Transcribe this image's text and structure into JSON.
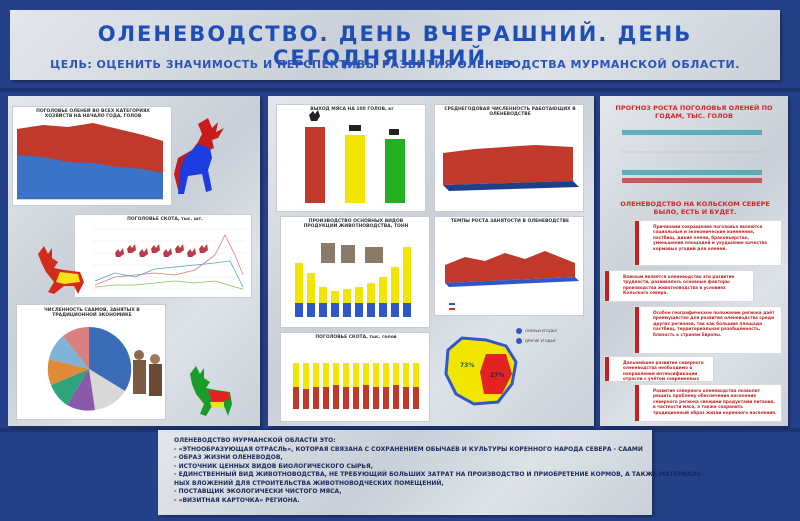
{
  "header": {
    "title": "ОЛЕНЕВОДСТВО. ДЕНЬ ВЧЕРАШНИЙ. ДЕНЬ СЕГОДНЯШНИЙ...",
    "goal": "ЦЕЛЬ: ОЦЕНИТЬ ЗНАЧИМОСТЬ И ПЕРСПЕКТИВЫ РАЗВИТИЯ ОЛЕНЕВОДСТВА МУРМАНСКОЙ ОБЛАСТИ."
  },
  "left_panel": {
    "chart1_title": "ПОГОЛОВЬЕ ОЛЕНЕЙ ВО ВСЕХ КАТЕГОРИЯХ ХОЗЯЙСТВ НА НАЧАЛО ГОДА, ГОЛОВ",
    "chart2_title": "ПОГОЛОВЬЕ СКОТА, тыс. шт.",
    "chart3_title": "ЧИСЛЕННОСТЬ СААМОВ, ЗАНЯТЫХ В ТРАДИЦИОННОЙ ЭКОНОМИКЕ"
  },
  "middle_panel": {
    "chart4_title": "ВЫХОД МЯСА НА 100 ГОЛОВ, кг",
    "chart5_title": "СРЕДНЕГОДОВАЯ ЧИСЛЕННОСТЬ РАБОТАЮЩИХ В ОЛЕНЕВОДСТВЕ",
    "chart6_title": "ПРОИЗВОДСТВО ОСНОВНЫХ ВИДОВ ПРОДУКЦИИ ЖИВОТНОВОДСТВА, ТОНН",
    "chart7_title": "ТЕМПЫ РОСТА ЗАНЯТОСТИ В ОЛЕНЕВОДСТВЕ",
    "chart8_title": "ПОГОЛОВЬЕ СКОТА, тыс. голов",
    "map_values": [
      "73%",
      "27%"
    ],
    "map_legend": [
      "ОЛЕНЬИ УГОДЬЯ",
      "ДРУГИЕ УГОДЬЯ"
    ]
  },
  "right_panel": {
    "forecast_title": "ПРОГНОЗ РОСТА ПОГОЛОВЬЯ ОЛЕНЕЙ ПО ГОДАМ, ТЫС. ГОЛОВ",
    "heading": "ОЛЕНЕВОДСТВО НА КОЛЬСКОМ СЕВЕРЕ БЫЛО, ЕСТЬ И БУДЕТ.",
    "notes": [
      "Причинами сокращения поголовья являются социальные и экономические изменения, пастбищ, дикие олени, браконьерство, уменьшение площадей и ухудшение качества кормовых угодий для оленей.",
      "Важным является оленеводство эти развитие трудности, развивалось основные факторы производства животноводства в условиях Кольского севера.",
      "Особое географическое положение региона даёт преимущество для развития оленеводства среди других регионов, так как большие площади пастбищ, территориальная разобщённость, близость к странам Европы.",
      "Дальнейшее развитие северного оленеводства необходимо в направлении интенсификации отрасли с учётом современных рыночных условий.",
      "Развитие северного оленеводства позволит решить проблему обеспечения населения северного региона свежими продуктами питания, в частности мяса, а также сохранить традиционный образ жизни коренного населения."
    ]
  },
  "bottom": {
    "lines": [
      "ОЛЕНЕВОДСТВО МУРМАНСКОЙ ОБЛАСТИ ЭТО:",
      "- «ЭТНООБРАЗУЮЩАЯ ОТРАСЛЬ», КОТОРАЯ СВЯЗАНА С СОХРАНЕНИЕМ ОБЫЧАЕВ И КУЛЬТУРЫ КОРЕННОГО НАРОДА СЕВЕРА - СААМИ",
      "- ОБРАЗ ЖИЗНИ ОЛЕНЕВОДОВ,",
      "- ИСТОЧНИК ЦЕННЫХ ВИДОВ БИОЛОГИЧЕСКОГО СЫРЬЯ,",
      "- ЕДИНСТВЕННЫЙ ВИД ЖИВОТНОВОДСТВА, НЕ ТРЕБУЮЩИЙ БОЛЬШИХ ЗАТРАТ НА ПРОИЗВОДСТВО И ПРИОБРЕТЕНИЕ КОРМОВ, А ТАКЖЕ МАТЕРИАЛЬ-",
      "НЫХ ВЛОЖЕНИЙ ДЛЯ СТРОИТЕЛЬСТВА ЖИВОТНОВОДЧЕСКИХ ПОМЕЩЕНИЙ,",
      "- ПОСТАВЩИК ЭКОЛОГИЧЕСКИ ЧИСТОГО МЯСА,",
      "- «ВИЗИТНАЯ КАРТОЧКА» РЕГИОНА."
    ]
  },
  "colors": {
    "background": "#24418a",
    "title_blue": "#1f4fb5",
    "red": "#c22222",
    "yellow": "#f2e600",
    "green": "#22b022",
    "blue": "#2f57c9"
  }
}
